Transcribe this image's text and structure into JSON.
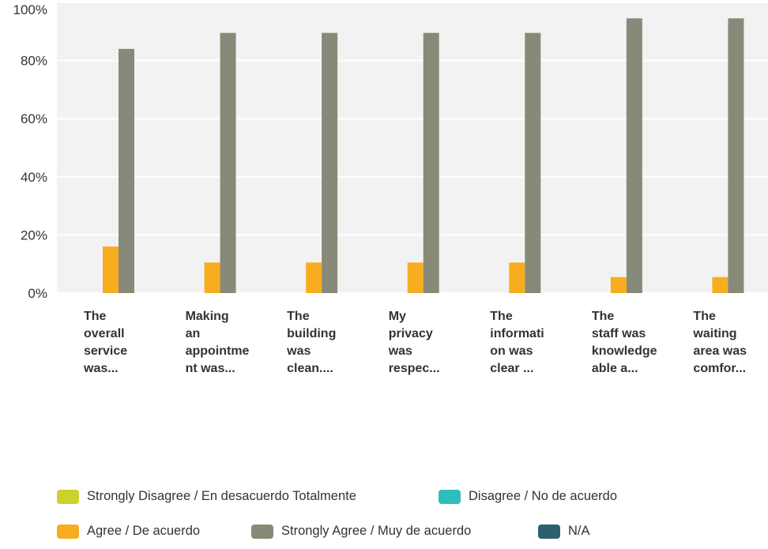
{
  "chart_data": {
    "type": "bar",
    "categories": [
      "The overall service was...",
      "Making an appointment was...",
      "The building was clean....",
      "My privacy was respec...",
      "The information was clear ...",
      "The staff was knowledgeable a...",
      "The waiting area was comfor..."
    ],
    "category_lines": [
      [
        "The",
        "overall",
        "service",
        "was..."
      ],
      [
        "Making",
        "an",
        "appointme",
        "nt was..."
      ],
      [
        "The",
        "building",
        "was",
        "clean...."
      ],
      [
        "My",
        "privacy",
        "was",
        "respec..."
      ],
      [
        "The",
        "informati",
        "on was",
        "clear ..."
      ],
      [
        "The",
        "staff was",
        "knowledge",
        "able a..."
      ],
      [
        "The",
        "waiting",
        "area was",
        "comfor..."
      ]
    ],
    "series": [
      {
        "name": "Strongly Disagree / En desacuerdo Totalmente",
        "color": "#c9d32b",
        "values": [
          0,
          0,
          0,
          0,
          0,
          0,
          0
        ]
      },
      {
        "name": "Disagree / No de acuerdo",
        "color": "#2ebdbb",
        "values": [
          0,
          0,
          0,
          0,
          0,
          0,
          0
        ]
      },
      {
        "name": "Agree / De acuerdo",
        "color": "#f8ad20",
        "values": [
          16,
          10.5,
          10.5,
          10.5,
          10.5,
          5.5,
          5.5
        ]
      },
      {
        "name": "Strongly Agree / Muy de acuerdo",
        "color": "#878a78",
        "values": [
          84,
          89.5,
          89.5,
          89.5,
          89.5,
          94.5,
          94.5
        ]
      },
      {
        "name": "N/A",
        "color": "#2d5f6e",
        "values": [
          0,
          0,
          0,
          0,
          0,
          0,
          0
        ]
      }
    ],
    "ylim": [
      0,
      100
    ],
    "yticks": [
      0,
      20,
      40,
      60,
      80,
      100
    ],
    "ytick_labels": [
      "0%",
      "20%",
      "40%",
      "60%",
      "80%",
      "100%"
    ],
    "grid": true,
    "legend_position": "bottom",
    "plot_background": "#f2f2f2",
    "grid_color": "#ffffff"
  }
}
